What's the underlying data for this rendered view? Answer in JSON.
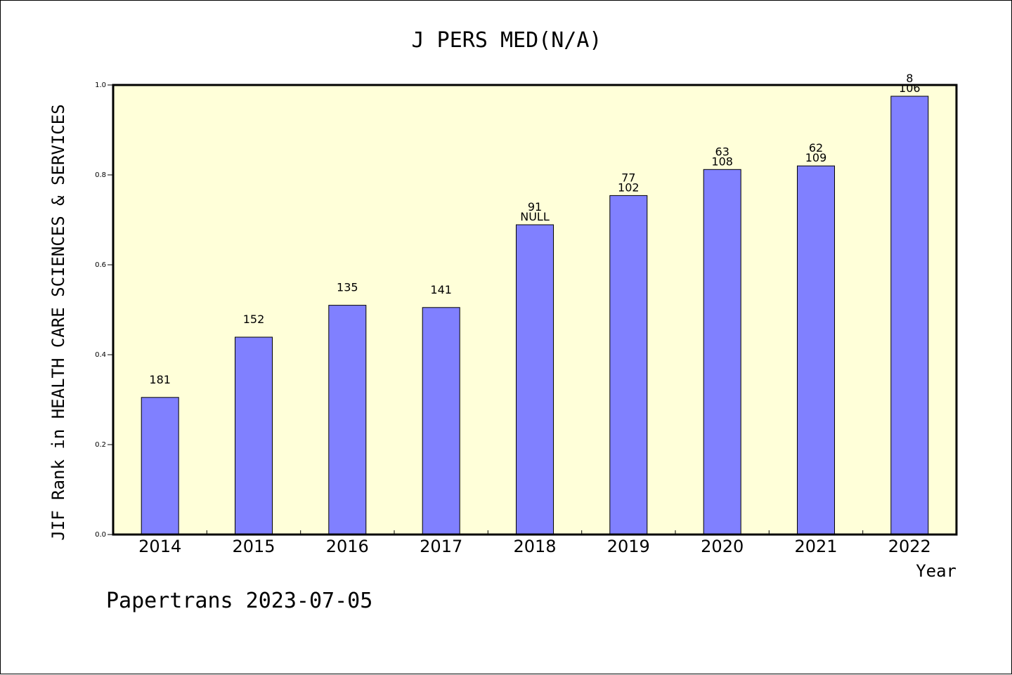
{
  "chart_data": {
    "type": "bar",
    "title": "J PERS MED(N/A)",
    "xlabel": "Year",
    "ylabel": "JIF Rank in HEALTH CARE SCIENCES & SERVICES",
    "ylim": [
      0,
      1.0
    ],
    "yticks": [
      "0.0",
      "0.2",
      "0.4",
      "0.6",
      "0.8",
      "1.0"
    ],
    "grid": false,
    "categories": [
      "2014",
      "2015",
      "2016",
      "2017",
      "2018",
      "2019",
      "2020",
      "2021",
      "2022"
    ],
    "values": [
      0.305,
      0.439,
      0.51,
      0.505,
      0.689,
      0.754,
      0.812,
      0.82,
      0.975
    ],
    "bar_labels": [
      [
        "181"
      ],
      [
        "152"
      ],
      [
        "135"
      ],
      [
        "141"
      ],
      [
        "91",
        "NULL"
      ],
      [
        "77",
        "102"
      ],
      [
        "63",
        "108"
      ],
      [
        "62",
        "109"
      ],
      [
        "8",
        "106"
      ]
    ],
    "colors": {
      "plot_background": "#ffffd9",
      "bar_fill": "#8080ff",
      "bar_stroke": "#000000"
    }
  },
  "footer": "Papertrans 2023-07-05"
}
